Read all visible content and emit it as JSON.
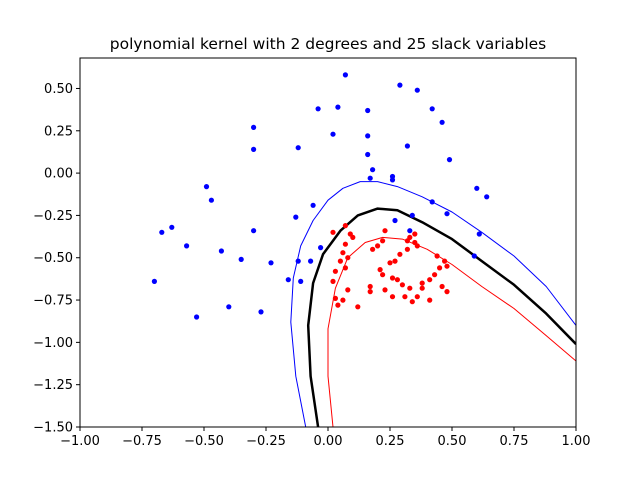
{
  "chart_data": {
    "type": "scatter",
    "title": "polynomial kernel with 2 degrees and 25 slack variables",
    "xlabel": "",
    "ylabel": "",
    "xlim": [
      -1.0,
      1.0
    ],
    "ylim": [
      -1.5,
      0.68
    ],
    "x_ticks": [
      "−1.00",
      "−0.75",
      "−0.50",
      "−0.25",
      "0.00",
      "0.25",
      "0.50",
      "0.75",
      "1.00"
    ],
    "x_tick_values": [
      -1.0,
      -0.75,
      -0.5,
      -0.25,
      0.0,
      0.25,
      0.5,
      0.75,
      1.0
    ],
    "y_ticks": [
      "−1.50",
      "−1.25",
      "−1.00",
      "−0.75",
      "−0.50",
      "−0.25",
      "0.00",
      "0.25",
      "0.50"
    ],
    "y_tick_values": [
      -1.5,
      -1.25,
      -1.0,
      -0.75,
      -0.5,
      -0.25,
      0.0,
      0.25,
      0.5
    ],
    "grid": false,
    "legend": "none",
    "colors": {
      "class_a": "#0000ff",
      "class_b": "#ff0000",
      "boundary": "#000000"
    },
    "series": [
      {
        "color": "#0000ff",
        "points": [
          [
            -0.7,
            -0.64
          ],
          [
            -0.67,
            -0.35
          ],
          [
            -0.63,
            -0.32
          ],
          [
            -0.57,
            -0.43
          ],
          [
            -0.53,
            -0.85
          ],
          [
            -0.49,
            -0.08
          ],
          [
            -0.47,
            -0.16
          ],
          [
            -0.43,
            -0.46
          ],
          [
            -0.4,
            -0.79
          ],
          [
            -0.35,
            -0.51
          ],
          [
            -0.3,
            0.27
          ],
          [
            -0.3,
            0.14
          ],
          [
            -0.3,
            -0.34
          ],
          [
            -0.27,
            -0.82
          ],
          [
            -0.23,
            -0.53
          ],
          [
            -0.16,
            -0.63
          ],
          [
            -0.13,
            -0.26
          ],
          [
            -0.12,
            0.15
          ],
          [
            -0.12,
            -0.52
          ],
          [
            -0.11,
            -0.64
          ],
          [
            -0.07,
            -0.52
          ],
          [
            -0.06,
            -0.19
          ],
          [
            -0.04,
            0.38
          ],
          [
            -0.03,
            -0.44
          ],
          [
            0.02,
            0.23
          ],
          [
            0.04,
            0.39
          ],
          [
            0.07,
            0.58
          ],
          [
            0.16,
            0.22
          ],
          [
            0.16,
            0.11
          ],
          [
            0.16,
            0.37
          ],
          [
            0.17,
            -0.03
          ],
          [
            0.18,
            0.02
          ],
          [
            0.26,
            -0.02
          ],
          [
            0.26,
            -0.04
          ],
          [
            0.27,
            -0.28
          ],
          [
            0.29,
            0.52
          ],
          [
            0.32,
            0.16
          ],
          [
            0.33,
            -0.34
          ],
          [
            0.34,
            -0.25
          ],
          [
            0.36,
            0.49
          ],
          [
            0.42,
            0.38
          ],
          [
            0.42,
            -0.17
          ],
          [
            0.46,
            0.3
          ],
          [
            0.48,
            -0.24
          ],
          [
            0.49,
            0.08
          ],
          [
            0.59,
            -0.49
          ],
          [
            0.6,
            -0.09
          ],
          [
            0.61,
            -0.36
          ],
          [
            0.64,
            -0.14
          ]
        ]
      },
      {
        "color": "#ff0000",
        "points": [
          [
            0.02,
            -0.35
          ],
          [
            0.02,
            -0.64
          ],
          [
            0.03,
            -0.74
          ],
          [
            0.03,
            -0.58
          ],
          [
            0.04,
            -0.78
          ],
          [
            0.05,
            -0.52
          ],
          [
            0.06,
            -0.47
          ],
          [
            0.06,
            -0.75
          ],
          [
            0.07,
            -0.42
          ],
          [
            0.07,
            -0.56
          ],
          [
            0.07,
            -0.31
          ],
          [
            0.08,
            -0.69
          ],
          [
            0.08,
            -0.5
          ],
          [
            0.09,
            -0.36
          ],
          [
            0.1,
            -0.38
          ],
          [
            0.12,
            -0.79
          ],
          [
            0.17,
            -0.67
          ],
          [
            0.17,
            -0.7
          ],
          [
            0.18,
            -0.45
          ],
          [
            0.2,
            -0.43
          ],
          [
            0.21,
            -0.57
          ],
          [
            0.22,
            -0.4
          ],
          [
            0.22,
            -0.6
          ],
          [
            0.23,
            -0.34
          ],
          [
            0.23,
            -0.69
          ],
          [
            0.25,
            -0.53
          ],
          [
            0.26,
            -0.62
          ],
          [
            0.26,
            -0.73
          ],
          [
            0.27,
            -0.52
          ],
          [
            0.28,
            -0.63
          ],
          [
            0.29,
            -0.48
          ],
          [
            0.3,
            -0.66
          ],
          [
            0.31,
            -0.73
          ],
          [
            0.32,
            -0.4
          ],
          [
            0.32,
            -0.45
          ],
          [
            0.33,
            -0.38
          ],
          [
            0.33,
            -0.68
          ],
          [
            0.34,
            -0.76
          ],
          [
            0.35,
            -0.36
          ],
          [
            0.35,
            -0.41
          ],
          [
            0.36,
            -0.43
          ],
          [
            0.36,
            -0.73
          ],
          [
            0.38,
            -0.65
          ],
          [
            0.38,
            -0.68
          ],
          [
            0.41,
            -0.63
          ],
          [
            0.41,
            -0.75
          ],
          [
            0.43,
            -0.6
          ],
          [
            0.44,
            -0.49
          ],
          [
            0.45,
            -0.56
          ],
          [
            0.46,
            -0.67
          ],
          [
            0.47,
            -0.52
          ],
          [
            0.48,
            -0.7
          ],
          [
            0.48,
            -0.55
          ]
        ]
      }
    ],
    "curves": [
      {
        "color": "#000000",
        "style": "bold",
        "points": [
          [
            -0.04,
            -1.5
          ],
          [
            -0.07,
            -1.2
          ],
          [
            -0.08,
            -0.9
          ],
          [
            -0.06,
            -0.65
          ],
          [
            -0.02,
            -0.48
          ],
          [
            0.05,
            -0.34
          ],
          [
            0.12,
            -0.25
          ],
          [
            0.2,
            -0.21
          ],
          [
            0.28,
            -0.22
          ],
          [
            0.38,
            -0.29
          ],
          [
            0.5,
            -0.39
          ],
          [
            0.62,
            -0.52
          ],
          [
            0.75,
            -0.66
          ],
          [
            0.88,
            -0.83
          ],
          [
            1.0,
            -1.01
          ]
        ]
      },
      {
        "color": "#0000ff",
        "style": "thin",
        "points": [
          [
            -0.09,
            -1.5
          ],
          [
            -0.13,
            -1.2
          ],
          [
            -0.15,
            -0.88
          ],
          [
            -0.14,
            -0.62
          ],
          [
            -0.11,
            -0.43
          ],
          [
            -0.06,
            -0.28
          ],
          [
            0.0,
            -0.16
          ],
          [
            0.06,
            -0.09
          ],
          [
            0.13,
            -0.05
          ],
          [
            0.2,
            -0.05
          ],
          [
            0.28,
            -0.08
          ],
          [
            0.38,
            -0.14
          ],
          [
            0.5,
            -0.23
          ],
          [
            0.62,
            -0.35
          ],
          [
            0.75,
            -0.49
          ],
          [
            0.88,
            -0.67
          ],
          [
            1.0,
            -0.9
          ]
        ]
      },
      {
        "color": "#ff0000",
        "style": "thin",
        "points": [
          [
            0.02,
            -1.5
          ],
          [
            0.0,
            -1.2
          ],
          [
            0.0,
            -0.92
          ],
          [
            0.03,
            -0.68
          ],
          [
            0.08,
            -0.5
          ],
          [
            0.15,
            -0.41
          ],
          [
            0.22,
            -0.38
          ],
          [
            0.3,
            -0.39
          ],
          [
            0.4,
            -0.45
          ],
          [
            0.5,
            -0.54
          ],
          [
            0.62,
            -0.67
          ],
          [
            0.75,
            -0.8
          ],
          [
            0.88,
            -0.96
          ],
          [
            1.0,
            -1.11
          ]
        ]
      }
    ]
  }
}
